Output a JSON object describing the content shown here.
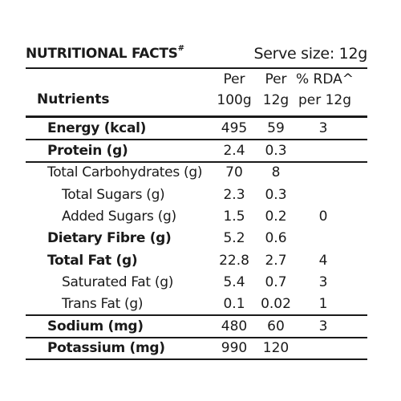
{
  "title": "NUTRITIONAL FACTS",
  "title_mark": "#",
  "serve_size": "Serve size: 12g",
  "headers": {
    "nutrients": "Nutrients",
    "per100_line1": "Per",
    "per100_line2": "100g",
    "per12_line1": "Per",
    "per12_line2": "12g",
    "rda_line1": "% RDA^",
    "rda_line2": "per 12g"
  },
  "rows": [
    {
      "label": "Energy (kcal)",
      "per100": "495",
      "per12": "59",
      "rda": "3"
    },
    {
      "label": "Protein (g)",
      "per100": "2.4",
      "per12": "0.3",
      "rda": ""
    },
    {
      "label": "Total Carbohydrates (g)",
      "per100": "70",
      "per12": "8",
      "rda": ""
    },
    {
      "label": "Total Sugars (g)",
      "per100": "2.3",
      "per12": "0.3",
      "rda": ""
    },
    {
      "label": "Added Sugars (g)",
      "per100": "1.5",
      "per12": "0.2",
      "rda": "0"
    },
    {
      "label": "Dietary Fibre (g)",
      "per100": "5.2",
      "per12": "0.6",
      "rda": ""
    },
    {
      "label": "Total Fat (g)",
      "per100": "22.8",
      "per12": "2.7",
      "rda": "4"
    },
    {
      "label": "Saturated Fat (g)",
      "per100": "5.4",
      "per12": "0.7",
      "rda": "3"
    },
    {
      "label": "Trans Fat (g)",
      "per100": "0.1",
      "per12": "0.02",
      "rda": "1"
    },
    {
      "label": "Sodium (mg)",
      "per100": "480",
      "per12": "60",
      "rda": "3"
    },
    {
      "label": "Potassium (mg)",
      "per100": "990",
      "per12": "120",
      "rda": ""
    }
  ]
}
